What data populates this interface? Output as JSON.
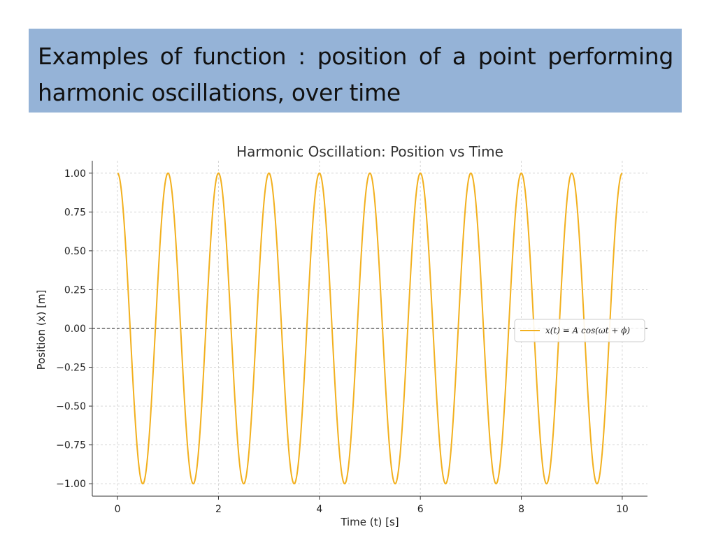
{
  "slide": {
    "title": "Examples of function : position of a point performing harmonic oscillations, over time",
    "header_bg": "#95b3d7"
  },
  "chart_data": {
    "type": "line",
    "title": "Harmonic Oscillation: Position vs Time",
    "xlabel": "Time (t) [s]",
    "ylabel": "Position (x) [m]",
    "xlim": [
      -0.5,
      10.5
    ],
    "ylim": [
      -1.08,
      1.08
    ],
    "xticks": [
      0,
      2,
      4,
      6,
      8,
      10
    ],
    "yticks": [
      1.0,
      0.75,
      0.5,
      0.25,
      0.0,
      -0.25,
      -0.5,
      -0.75,
      -1.0
    ],
    "ytick_labels": [
      "1.00",
      "0.75",
      "0.50",
      "0.25",
      "0.00",
      "−0.25",
      "−0.50",
      "−0.75",
      "−1.00"
    ],
    "grid": true,
    "legend_position": "center-right",
    "series": [
      {
        "name": "x(t) = A cos(ωt + ϕ)",
        "color": "#f2b01e",
        "function": "cos",
        "amplitude": 1.0,
        "frequency_hz": 1.0,
        "phase": 0.0,
        "t_range": [
          0,
          10
        ]
      }
    ],
    "reference_lines": [
      {
        "y": 0.0,
        "style": "dashed",
        "color": "#444444"
      }
    ]
  }
}
